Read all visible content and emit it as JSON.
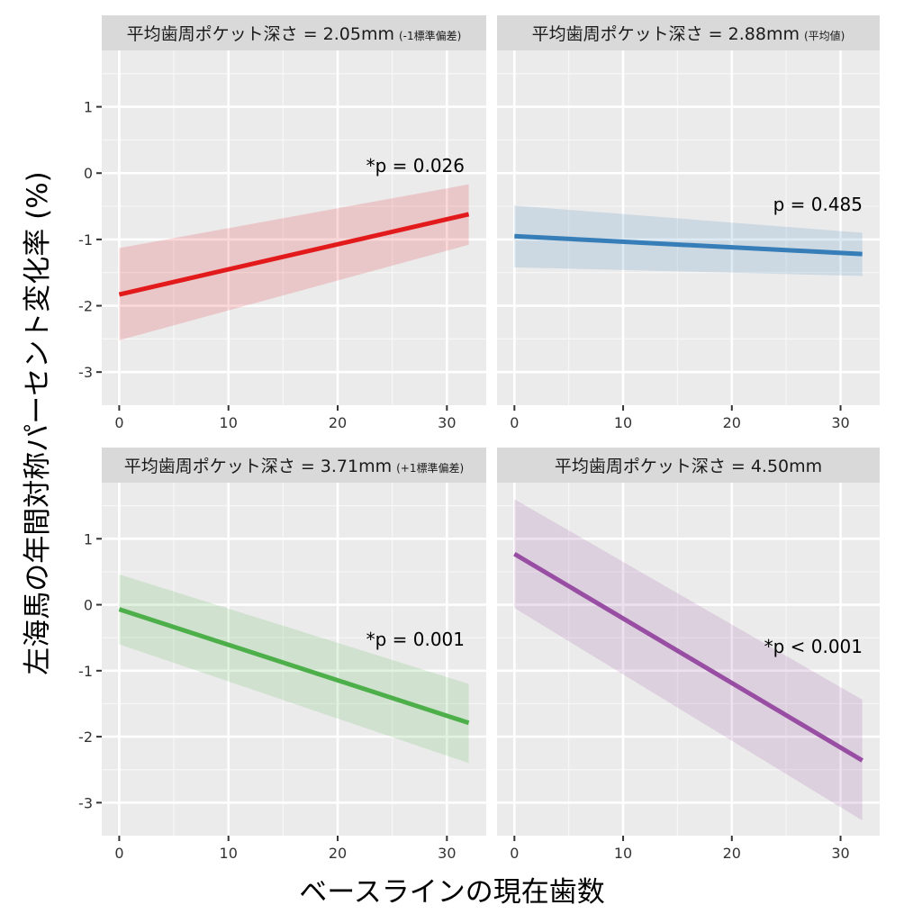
{
  "figure": {
    "ylabel": "左海馬の年間対称パーセント変化率 (%)",
    "xlabel": "ベースラインの現在歯数"
  },
  "chart_data": [
    {
      "type": "line",
      "panel_title": "平均歯周ポケット深さ = 2.05mm",
      "panel_title_note": "(-1標準偏差)",
      "annotation": "*p = 0.026",
      "color": "#E31A1C",
      "x": [
        0,
        32
      ],
      "y": [
        -1.83,
        -0.62
      ],
      "ci_lower": [
        -2.52,
        -1.08
      ],
      "ci_upper": [
        -1.13,
        -0.17
      ],
      "xlim": [
        -1.6,
        33.6
      ],
      "ylim": [
        -3.5,
        1.85
      ],
      "xticks": [
        0,
        10,
        20,
        30
      ],
      "yticks": [
        -3,
        -2,
        -1,
        0,
        1
      ],
      "grid": true
    },
    {
      "type": "line",
      "panel_title": "平均歯周ポケット深さ = 2.88mm",
      "panel_title_note": "(平均値)",
      "annotation": "p = 0.485",
      "color": "#377EB8",
      "x": [
        0,
        32
      ],
      "y": [
        -0.95,
        -1.22
      ],
      "ci_lower": [
        -1.42,
        -1.55
      ],
      "ci_upper": [
        -0.49,
        -0.9
      ],
      "xlim": [
        -1.6,
        33.6
      ],
      "ylim": [
        -3.5,
        1.85
      ],
      "xticks": [
        0,
        10,
        20,
        30
      ],
      "yticks": [
        -3,
        -2,
        -1,
        0,
        1
      ],
      "grid": true
    },
    {
      "type": "line",
      "panel_title": "平均歯周ポケット深さ = 3.71mm",
      "panel_title_note": "(+1標準偏差)",
      "annotation": "*p = 0.001",
      "color": "#4DAF4A",
      "x": [
        0,
        32
      ],
      "y": [
        -0.07,
        -1.79
      ],
      "ci_lower": [
        -0.6,
        -2.4
      ],
      "ci_upper": [
        0.46,
        -1.2
      ],
      "xlim": [
        -1.6,
        33.6
      ],
      "ylim": [
        -3.5,
        1.85
      ],
      "xticks": [
        0,
        10,
        20,
        30
      ],
      "yticks": [
        -3,
        -2,
        -1,
        0,
        1
      ],
      "grid": true
    },
    {
      "type": "line",
      "panel_title": "平均歯周ポケット深さ = 4.50mm",
      "panel_title_note": "",
      "annotation": "*p < 0.001",
      "color": "#984EA3",
      "x": [
        0,
        32
      ],
      "y": [
        0.77,
        -2.36
      ],
      "ci_lower": [
        -0.05,
        -3.27
      ],
      "ci_upper": [
        1.6,
        -1.44
      ],
      "xlim": [
        -1.6,
        33.6
      ],
      "ylim": [
        -3.5,
        1.85
      ],
      "xticks": [
        0,
        10,
        20,
        30
      ],
      "yticks": [
        -3,
        -2,
        -1,
        0,
        1
      ],
      "grid": true
    }
  ]
}
